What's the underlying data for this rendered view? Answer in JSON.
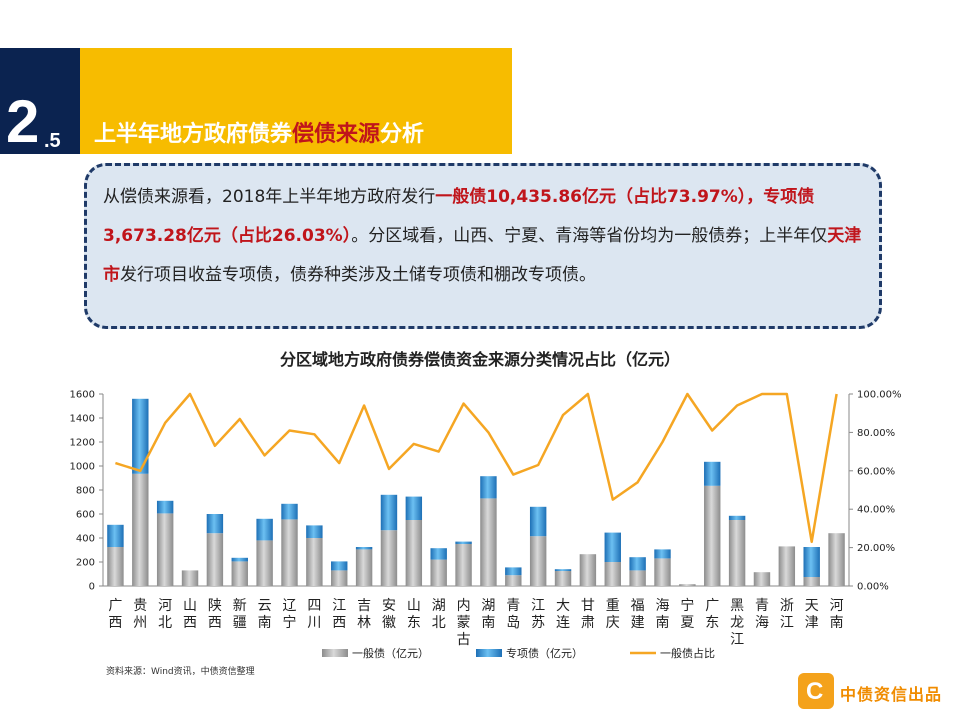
{
  "section": {
    "number": "2",
    "sub": ".5"
  },
  "heading": {
    "part1": "上半年地方政府债券",
    "part2": "偿债来源",
    "part3": "分析"
  },
  "summary": {
    "s1": "从偿债来源看，2018年上半年地方政府发行",
    "s2": "一般债10,435.86亿元（占比73.97%），专项债3,673.28亿元（占比26.03%）",
    "s3": "。分区域看，山西、宁夏、青海等省份均为一般债券；上半年仅",
    "s4": "天津市",
    "s5": "发行项目收益专项债，债券种类涉及土储专项债和棚改专项债。"
  },
  "chart_data": {
    "type": "bar",
    "title": "分区域地方政府债券偿债资金来源分类情况占比（亿元）",
    "categories": [
      "广西",
      "贵州",
      "河北",
      "山西",
      "陕西",
      "新疆",
      "云南",
      "辽宁",
      "四川",
      "江西",
      "吉林",
      "安徽",
      "山东",
      "湖北",
      "内蒙古",
      "湖南",
      "青岛",
      "江苏",
      "大连",
      "甘肃",
      "重庆",
      "福建",
      "海南",
      "宁夏",
      "广东",
      "黑龙江",
      "青海",
      "浙江",
      "天津",
      "河南"
    ],
    "series": [
      {
        "name": "一般债（亿元）",
        "type": "bar",
        "stack": true,
        "color": "#a6a6a6",
        "values": [
          325,
          935,
          605,
          130,
          440,
          205,
          380,
          555,
          400,
          130,
          305,
          465,
          550,
          220,
          350,
          730,
          90,
          415,
          125,
          265,
          200,
          130,
          230,
          15,
          835,
          550,
          115,
          330,
          75,
          440
        ]
      },
      {
        "name": "专项债（亿元）",
        "type": "bar",
        "stack": true,
        "color": "#2e8fd8",
        "values": [
          185,
          625,
          105,
          0,
          160,
          30,
          180,
          130,
          105,
          75,
          20,
          295,
          195,
          95,
          20,
          185,
          65,
          245,
          15,
          0,
          245,
          110,
          75,
          0,
          200,
          35,
          0,
          0,
          250,
          0
        ]
      },
      {
        "name": "一般债占比",
        "type": "line",
        "axis": "right",
        "color": "#f5a623",
        "values": [
          0.64,
          0.6,
          0.85,
          1.0,
          0.73,
          0.87,
          0.68,
          0.81,
          0.79,
          0.64,
          0.94,
          0.61,
          0.74,
          0.7,
          0.95,
          0.8,
          0.58,
          0.63,
          0.89,
          1.0,
          0.45,
          0.54,
          0.75,
          1.0,
          0.81,
          0.94,
          1.0,
          1.0,
          0.23,
          1.0
        ]
      }
    ],
    "y_left": {
      "min": 0,
      "max": 1600,
      "ticks": [
        "0",
        "200",
        "400",
        "600",
        "800",
        "1000",
        "1200",
        "1400",
        "1600"
      ]
    },
    "y_right": {
      "min": 0,
      "max": 1,
      "ticks": [
        "0.00%",
        "20.00%",
        "40.00%",
        "60.00%",
        "80.00%",
        "100.00%"
      ]
    },
    "legend_position": "bottom",
    "grid": false
  },
  "source": "资料来源：Wind资讯，中债资信整理",
  "logo": {
    "text": "中债资信出品",
    "glyph": "C"
  }
}
